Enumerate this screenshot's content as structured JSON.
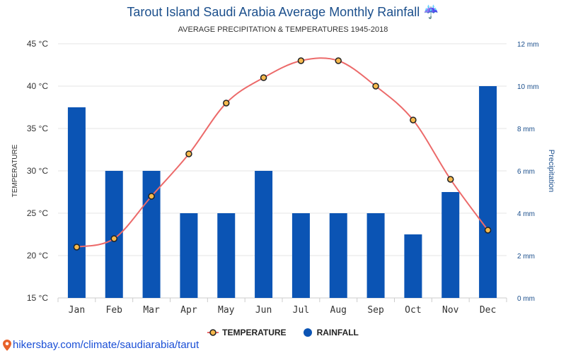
{
  "header": {
    "title": "Tarout Island Saudi Arabia Average Monthly Rainfall ☔",
    "subtitle": "AVERAGE PRECIPITATION & TEMPERATURES 1945-2018"
  },
  "legend": {
    "temperature_label": "TEMPERATURE",
    "rainfall_label": "RAINFALL"
  },
  "source": {
    "url_text": "hikersbay.com/climate/saudiarabia/tarut",
    "icon": "map-pin-icon"
  },
  "colors": {
    "bar": "#0b54b4",
    "line": "#ec6a6a",
    "marker_fill": "#f6b94c",
    "title": "#1b4f8c",
    "right_axis": "#1b4f8c",
    "grid": "#e6e6e6"
  },
  "chart_data": {
    "type": "bar",
    "categories": [
      "Jan",
      "Feb",
      "Mar",
      "Apr",
      "May",
      "Jun",
      "Jul",
      "Aug",
      "Sep",
      "Oct",
      "Nov",
      "Dec"
    ],
    "series": [
      {
        "name": "RAINFALL",
        "type": "bar",
        "axis": "right",
        "unit": "mm",
        "values": [
          9,
          6,
          6,
          4,
          4,
          6,
          4,
          4,
          4,
          3,
          5,
          10
        ]
      },
      {
        "name": "TEMPERATURE",
        "type": "line",
        "axis": "left",
        "unit": "°C",
        "values": [
          21,
          22,
          27,
          32,
          38,
          41,
          43,
          43,
          40,
          36,
          29,
          23
        ]
      }
    ],
    "y_left": {
      "label": "TEMPERATURE",
      "range": [
        15,
        45
      ],
      "ticks": [
        45,
        40,
        35,
        30,
        25,
        20,
        15
      ],
      "tick_suffix": " °C"
    },
    "y_right": {
      "label": "Precipitation",
      "range": [
        0,
        12
      ],
      "ticks": [
        12,
        10,
        8,
        6,
        4,
        2,
        0
      ],
      "tick_suffix": " mm"
    },
    "grid": true,
    "legend_position": "bottom"
  }
}
